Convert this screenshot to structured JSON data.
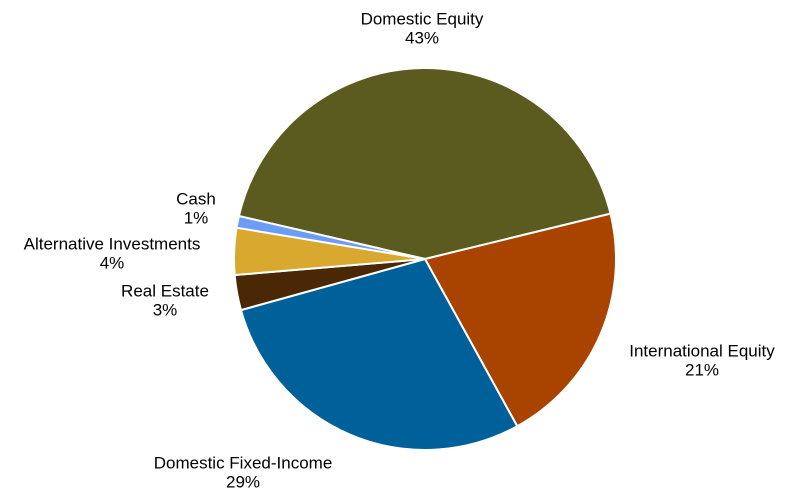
{
  "chart_data": {
    "type": "pie",
    "categories": [
      "Domestic Equity",
      "International Equity",
      "Domestic Fixed-Income",
      "Real Estate",
      "Alternative Investments",
      "Cash"
    ],
    "values": [
      43,
      21,
      29,
      3,
      4,
      1
    ],
    "value_labels": [
      "43%",
      "21%",
      "29%",
      "3%",
      "4%",
      "1%"
    ],
    "colors": [
      "#5b5b1f",
      "#a84400",
      "#00609a",
      "#4a2806",
      "#d8a82f",
      "#6b9cf6"
    ]
  }
}
